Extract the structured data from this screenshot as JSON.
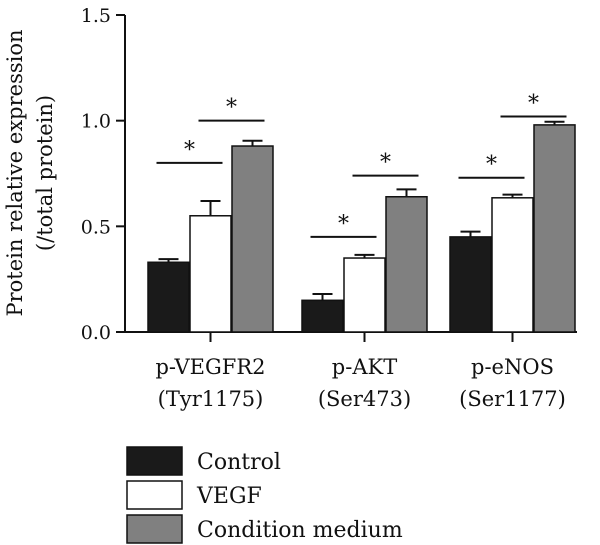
{
  "chart_data": {
    "type": "bar",
    "ylabel_line1": "Protein relative expression",
    "ylabel_line2": "(/total protein)",
    "ylim": [
      0,
      1.5
    ],
    "yticks": [
      "0.0",
      "0.5",
      "1.0",
      "1.5"
    ],
    "categories": [
      {
        "line1": "p-VEGFR2",
        "line2": "(Tyr1175)"
      },
      {
        "line1": "p-AKT",
        "line2": "(Ser473)"
      },
      {
        "line1": "p-eNOS",
        "line2": "(Ser1177)"
      }
    ],
    "series": [
      {
        "name": "Control",
        "color": "#1a1a1a",
        "values": [
          0.33,
          0.15,
          0.45
        ],
        "errors": [
          0.015,
          0.03,
          0.025
        ]
      },
      {
        "name": "VEGF",
        "color": "#ffffff",
        "values": [
          0.55,
          0.35,
          0.635
        ],
        "errors": [
          0.07,
          0.015,
          0.015
        ]
      },
      {
        "name": "Condition medium",
        "color": "#808080",
        "values": [
          0.88,
          0.64,
          0.98
        ],
        "errors": [
          0.025,
          0.035,
          0.015
        ]
      }
    ],
    "significance": [
      {
        "group": 0,
        "from": 0,
        "to": 1,
        "y": 0.8,
        "label": "*"
      },
      {
        "group": 0,
        "from": 1,
        "to": 2,
        "y": 1.0,
        "label": "*"
      },
      {
        "group": 1,
        "from": 0,
        "to": 1,
        "y": 0.45,
        "label": "*"
      },
      {
        "group": 1,
        "from": 1,
        "to": 2,
        "y": 0.74,
        "label": "*"
      },
      {
        "group": 2,
        "from": 0,
        "to": 1,
        "y": 0.73,
        "label": "*"
      },
      {
        "group": 2,
        "from": 1,
        "to": 2,
        "y": 1.02,
        "label": "*"
      }
    ],
    "legend_position": "bottom-left",
    "grid": false
  }
}
